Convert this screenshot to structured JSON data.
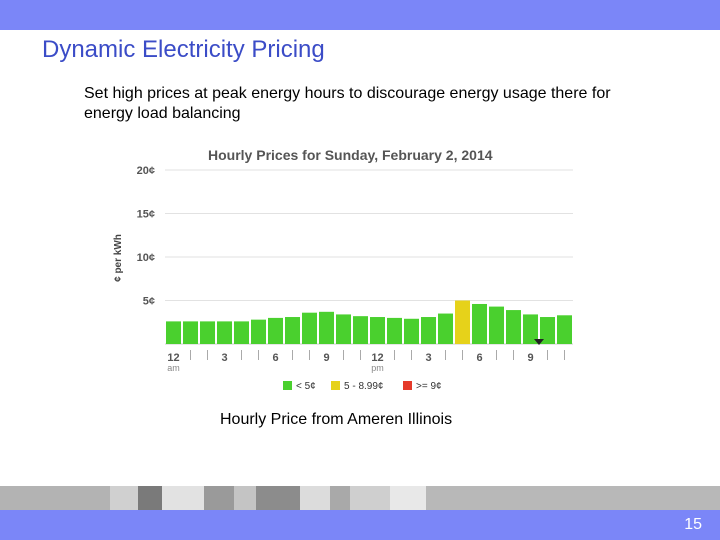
{
  "slide": {
    "title": "Dynamic Electricity Pricing",
    "subtitle": "Set high prices at peak energy hours to discourage energy usage there for energy load balancing",
    "caption": "Hourly Price from Ameren Illinois",
    "page_number": "15",
    "accent_color": "#7b86f8",
    "title_color": "#3b4cc7"
  },
  "chart_data": {
    "type": "bar",
    "title": "Hourly Prices for Sunday, February 2, 2014",
    "xlabel": "",
    "ylabel": "¢ per kWh",
    "ylim": [
      0,
      20
    ],
    "yticks": [
      {
        "value": 5,
        "label": "5¢"
      },
      {
        "value": 10,
        "label": "10¢"
      },
      {
        "value": 15,
        "label": "15¢"
      },
      {
        "value": 20,
        "label": "20¢"
      }
    ],
    "xticks": [
      {
        "hour": 0,
        "label": "12",
        "sub": "am"
      },
      {
        "hour": 3,
        "label": "3",
        "sub": ""
      },
      {
        "hour": 6,
        "label": "6",
        "sub": ""
      },
      {
        "hour": 9,
        "label": "9",
        "sub": ""
      },
      {
        "hour": 12,
        "label": "12",
        "sub": "pm"
      },
      {
        "hour": 15,
        "label": "3",
        "sub": ""
      },
      {
        "hour": 18,
        "label": "6",
        "sub": ""
      },
      {
        "hour": 21,
        "label": "9",
        "sub": ""
      }
    ],
    "grid": true,
    "hours": [
      0,
      1,
      2,
      3,
      4,
      5,
      6,
      7,
      8,
      9,
      10,
      11,
      12,
      13,
      14,
      15,
      16,
      17,
      18,
      19,
      20,
      21,
      22,
      23
    ],
    "values": [
      2.6,
      2.6,
      2.6,
      2.6,
      2.6,
      2.8,
      3.0,
      3.1,
      3.6,
      3.7,
      3.4,
      3.2,
      3.1,
      3.0,
      2.9,
      3.1,
      3.5,
      5.0,
      4.6,
      4.3,
      3.9,
      3.4,
      3.1,
      3.3
    ],
    "current_hour_marker": 21,
    "colors": {
      "low": "#4ad02e",
      "mid": "#e6d21a",
      "high": "#e53a2a"
    },
    "legend_position": "bottom",
    "legend": [
      {
        "label": "< 5¢",
        "color": "#4ad02e"
      },
      {
        "label": "5 - 8.99¢",
        "color": "#e6d21a"
      },
      {
        "label": ">= 9¢",
        "color": "#e53a2a"
      }
    ]
  }
}
